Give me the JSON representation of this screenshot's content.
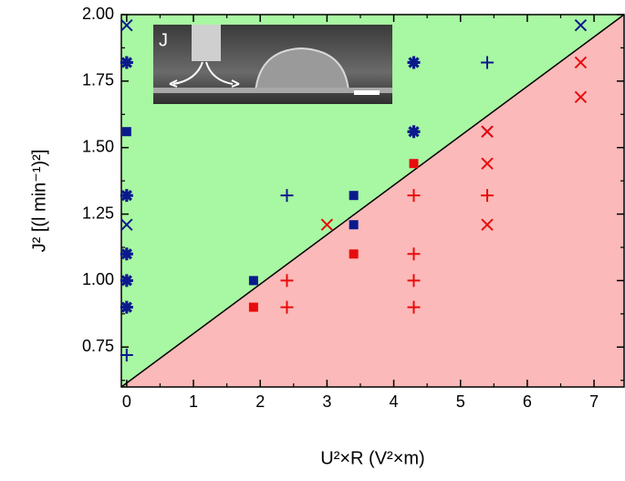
{
  "chart_data": {
    "type": "scatter",
    "xlabel": "U²×R (V²×m)",
    "ylabel": "J² [(l min⁻¹)²]",
    "inset_label": "J",
    "xlim": [
      -0.08,
      7.45
    ],
    "ylim": [
      0.6,
      2.0
    ],
    "xticks": [
      0,
      1,
      2,
      3,
      4,
      5,
      6,
      7
    ],
    "yticks": [
      0.75,
      {
        "value": 1,
        "label": "1.00"
      },
      1.25,
      {
        "value": 1.5,
        "label": "1.50"
      },
      1.75,
      {
        "value": 2,
        "label": "2.00"
      }
    ],
    "xminorticks": [
      0.5,
      1.5,
      2.5,
      3.5,
      4.5,
      5.5,
      6.5
    ],
    "yminorticks": [
      0.625,
      0.875,
      1.125,
      1.375,
      1.625,
      1.875
    ],
    "boundary": {
      "x": [
        -0.08,
        7.45
      ],
      "y": [
        0.6,
        2.0
      ],
      "above_color": "#a8f7a2",
      "below_color": "#fbb9b9"
    },
    "series": [
      {
        "marker": "square",
        "color": "#0a1a8c",
        "x": [
          0,
          1.9,
          3.4,
          3.4
        ],
        "values": [
          1.56,
          1.0,
          1.32,
          1.21
        ]
      },
      {
        "marker": "square",
        "color": "#e80c0c",
        "x": [
          1.9,
          3.4,
          4.3
        ],
        "values": [
          0.9,
          1.1,
          1.44
        ]
      },
      {
        "marker": "plus",
        "color": "#0a1a8c",
        "x": [
          0,
          2.4,
          5.4
        ],
        "values": [
          0.72,
          1.32,
          1.82
        ]
      },
      {
        "marker": "plus",
        "color": "#e80c0c",
        "x": [
          2.4,
          2.4,
          4.3,
          4.3,
          4.3,
          4.3,
          5.4
        ],
        "values": [
          1.0,
          0.9,
          1.32,
          1.1,
          1.0,
          0.9,
          1.32
        ]
      },
      {
        "marker": "cross",
        "color": "#0a1a8c",
        "x": [
          0,
          0,
          6.8,
          5.4
        ],
        "values": [
          1.96,
          1.21,
          1.96,
          1.56
        ]
      },
      {
        "marker": "cross",
        "color": "#e80c0c",
        "x": [
          3.0,
          5.4,
          5.4,
          5.4,
          6.8,
          6.8
        ],
        "values": [
          1.21,
          1.56,
          1.44,
          1.21,
          1.82,
          1.69
        ]
      },
      {
        "marker": "star",
        "color": "#0a1a8c",
        "x": [
          0,
          0,
          0,
          0,
          0,
          4.3,
          4.3
        ],
        "values": [
          1.82,
          1.32,
          1.1,
          1.0,
          0.9,
          1.82,
          1.56
        ]
      }
    ]
  }
}
